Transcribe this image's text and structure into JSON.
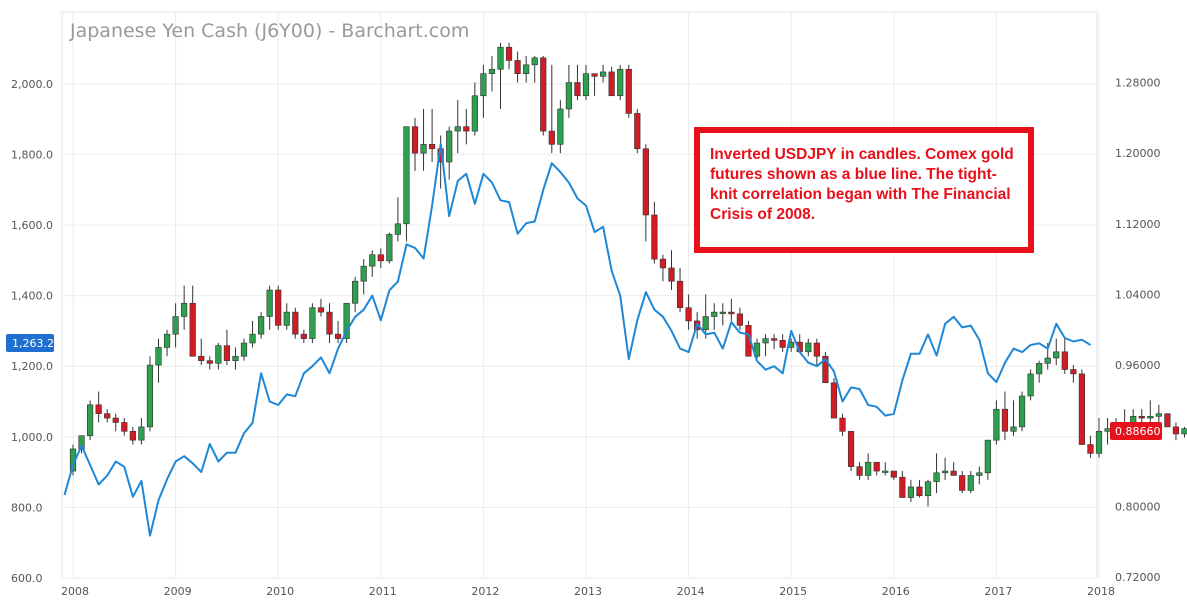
{
  "title": "Japanese Yen Cash (J6Y00) - Barchart.com",
  "annotation": "Inverted USDJPY in candles. Comex gold futures shown as a blue line. The tight-knit correlation began with The Financial Crisis of 2008.",
  "left_badge": "1,263.2",
  "right_badge": "0.88660",
  "colors": {
    "up": "#2e9e4f",
    "down": "#d01c24",
    "gold_line": "#1e88d6",
    "badge_left": "#1e6fd0",
    "badge_right": "#e8101a",
    "note_border": "#e8101a"
  },
  "chart_data": {
    "type": "line",
    "x_ticks": [
      "2008",
      "2009",
      "2010",
      "2011",
      "2012",
      "2013",
      "2014",
      "2015",
      "2016",
      "2017",
      "2018"
    ],
    "left_axis": {
      "ticks": [
        "600.0",
        "800.0",
        "1,000.0",
        "1,200.0",
        "1,400.0",
        "1,600.0",
        "1,800.0",
        "2,000.0"
      ],
      "ylim": [
        600,
        2200
      ]
    },
    "right_axis": {
      "ticks": [
        "0.72000",
        "0.80000",
        "0.88000",
        "0.96000",
        "1.04000",
        "1.12000",
        "1.20000",
        "1.28000"
      ],
      "ylim": [
        0.72,
        1.28
      ]
    },
    "grid": true,
    "series": [
      {
        "type": "line",
        "axis": "left",
        "start": "2007-12",
        "values": [
          835,
          920,
          975,
          920,
          865,
          890,
          930,
          915,
          830,
          875,
          720,
          820,
          880,
          930,
          945,
          925,
          900,
          980,
          930,
          955,
          955,
          1010,
          1040,
          1180,
          1100,
          1090,
          1120,
          1115,
          1180,
          1200,
          1225,
          1180,
          1250,
          1300,
          1340,
          1360,
          1400,
          1330,
          1415,
          1440,
          1545,
          1535,
          1505,
          1655,
          1830,
          1625,
          1725,
          1745,
          1660,
          1745,
          1720,
          1670,
          1665,
          1575,
          1605,
          1610,
          1700,
          1775,
          1750,
          1720,
          1675,
          1655,
          1580,
          1595,
          1470,
          1400,
          1220,
          1330,
          1410,
          1360,
          1340,
          1300,
          1250,
          1240,
          1320,
          1290,
          1295,
          1250,
          1325,
          1295,
          1290,
          1215,
          1190,
          1200,
          1180,
          1300,
          1240,
          1210,
          1200,
          1220,
          1185,
          1100,
          1140,
          1135,
          1090,
          1085,
          1060,
          1065,
          1160,
          1235,
          1235,
          1290,
          1230,
          1320,
          1340,
          1310,
          1315,
          1275,
          1180,
          1155,
          1210,
          1250,
          1240,
          1260,
          1265,
          1250,
          1320,
          1280,
          1270,
          1275,
          1260
        ]
      },
      {
        "type": "candlestick",
        "axis": "right",
        "start": "2008-01",
        "ohlc": [
          [
            0.84,
            0.87,
            0.835,
            0.865
          ],
          [
            0.865,
            0.875,
            0.86,
            0.88
          ],
          [
            0.88,
            0.92,
            0.875,
            0.915
          ],
          [
            0.915,
            0.93,
            0.895,
            0.905
          ],
          [
            0.905,
            0.91,
            0.895,
            0.9
          ],
          [
            0.9,
            0.905,
            0.885,
            0.895
          ],
          [
            0.895,
            0.9,
            0.88,
            0.885
          ],
          [
            0.885,
            0.89,
            0.87,
            0.875
          ],
          [
            0.875,
            0.9,
            0.87,
            0.89
          ],
          [
            0.89,
            0.97,
            0.885,
            0.96
          ],
          [
            0.96,
            0.99,
            0.94,
            0.98
          ],
          [
            0.98,
            1.0,
            0.97,
            0.995
          ],
          [
            0.995,
            1.03,
            0.98,
            1.015
          ],
          [
            1.015,
            1.05,
            1.0,
            1.03
          ],
          [
            1.03,
            1.05,
            0.97,
            0.97
          ],
          [
            0.97,
            0.99,
            0.96,
            0.965
          ],
          [
            0.965,
            0.97,
            0.955,
            0.962
          ],
          [
            0.962,
            0.985,
            0.955,
            0.982
          ],
          [
            0.982,
            1.0,
            0.96,
            0.965
          ],
          [
            0.965,
            0.98,
            0.955,
            0.97
          ],
          [
            0.97,
            0.99,
            0.965,
            0.985
          ],
          [
            0.985,
            1.01,
            0.98,
            0.995
          ],
          [
            0.995,
            1.02,
            0.99,
            1.015
          ],
          [
            1.015,
            1.05,
            1.0,
            1.045
          ],
          [
            1.045,
            1.05,
            1.0,
            1.005
          ],
          [
            1.005,
            1.03,
            1.0,
            1.02
          ],
          [
            1.02,
            1.025,
            0.99,
            0.995
          ],
          [
            0.995,
            1.0,
            0.985,
            0.99
          ],
          [
            0.99,
            1.03,
            0.985,
            1.025
          ],
          [
            1.025,
            1.035,
            1.015,
            1.02
          ],
          [
            1.02,
            1.03,
            0.985,
            0.995
          ],
          [
            0.995,
            1.01,
            0.985,
            0.99
          ],
          [
            0.99,
            1.03,
            0.985,
            1.03
          ],
          [
            1.03,
            1.06,
            1.02,
            1.055
          ],
          [
            1.055,
            1.08,
            1.04,
            1.072
          ],
          [
            1.072,
            1.09,
            1.06,
            1.085
          ],
          [
            1.085,
            1.092,
            1.07,
            1.078
          ],
          [
            1.078,
            1.11,
            1.075,
            1.108
          ],
          [
            1.108,
            1.15,
            1.1,
            1.12
          ],
          [
            1.12,
            1.23,
            1.1,
            1.23
          ],
          [
            1.23,
            1.24,
            1.18,
            1.2
          ],
          [
            1.2,
            1.25,
            1.18,
            1.21
          ],
          [
            1.21,
            1.25,
            1.19,
            1.205
          ],
          [
            1.205,
            1.22,
            1.16,
            1.19
          ],
          [
            1.19,
            1.23,
            1.17,
            1.225
          ],
          [
            1.225,
            1.26,
            1.2,
            1.23
          ],
          [
            1.23,
            1.25,
            1.21,
            1.225
          ],
          [
            1.225,
            1.28,
            1.22,
            1.265
          ],
          [
            1.265,
            1.3,
            1.24,
            1.29
          ],
          [
            1.29,
            1.31,
            1.27,
            1.295
          ],
          [
            1.295,
            1.325,
            1.25,
            1.32
          ],
          [
            1.32,
            1.325,
            1.295,
            1.305
          ],
          [
            1.305,
            1.315,
            1.28,
            1.29
          ],
          [
            1.29,
            1.31,
            1.28,
            1.3
          ],
          [
            1.3,
            1.31,
            1.28,
            1.308
          ],
          [
            1.308,
            1.31,
            1.22,
            1.225
          ],
          [
            1.225,
            1.3,
            1.2,
            1.21
          ],
          [
            1.21,
            1.26,
            1.2,
            1.25
          ],
          [
            1.25,
            1.3,
            1.24,
            1.28
          ],
          [
            1.28,
            1.3,
            1.26,
            1.265
          ],
          [
            1.265,
            1.3,
            1.26,
            1.29
          ],
          [
            1.29,
            1.29,
            1.265,
            1.287
          ],
          [
            1.287,
            1.3,
            1.28,
            1.292
          ],
          [
            1.292,
            1.298,
            1.265,
            1.265
          ],
          [
            1.265,
            1.3,
            1.26,
            1.295
          ],
          [
            1.295,
            1.3,
            1.24,
            1.245
          ],
          [
            1.245,
            1.25,
            1.2,
            1.205
          ],
          [
            1.205,
            1.21,
            1.1,
            1.13
          ],
          [
            1.13,
            1.145,
            1.075,
            1.08
          ],
          [
            1.08,
            1.085,
            1.055,
            1.07
          ],
          [
            1.07,
            1.09,
            1.045,
            1.055
          ],
          [
            1.055,
            1.07,
            1.02,
            1.025
          ],
          [
            1.025,
            1.04,
            1.0,
            1.01
          ],
          [
            1.01,
            1.02,
            0.99,
            1.0
          ],
          [
            1.0,
            1.04,
            0.99,
            1.015
          ],
          [
            1.015,
            1.03,
            1.0,
            1.02
          ],
          [
            1.02,
            1.03,
            1.005,
            1.02
          ],
          [
            1.02,
            1.035,
            1.01,
            1.018
          ],
          [
            1.018,
            1.025,
            1.0,
            1.005
          ],
          [
            1.005,
            1.01,
            0.97,
            0.97
          ],
          [
            0.97,
            0.99,
            0.965,
            0.985
          ],
          [
            0.985,
            0.995,
            0.97,
            0.99
          ],
          [
            0.99,
            0.995,
            0.978,
            0.988
          ],
          [
            0.988,
            0.995,
            0.975,
            0.98
          ],
          [
            0.98,
            0.99,
            0.975,
            0.986
          ],
          [
            0.986,
            0.995,
            0.978,
            0.975
          ],
          [
            0.975,
            0.99,
            0.97,
            0.985
          ],
          [
            0.985,
            0.99,
            0.96,
            0.97
          ],
          [
            0.97,
            0.975,
            0.94,
            0.94
          ],
          [
            0.94,
            0.945,
            0.9,
            0.9
          ],
          [
            0.9,
            0.905,
            0.88,
            0.885
          ],
          [
            0.885,
            0.87,
            0.84,
            0.845
          ],
          [
            0.845,
            0.85,
            0.83,
            0.835
          ],
          [
            0.835,
            0.86,
            0.83,
            0.85
          ],
          [
            0.85,
            0.85,
            0.835,
            0.84
          ],
          [
            0.84,
            0.85,
            0.835,
            0.84
          ],
          [
            0.84,
            0.84,
            0.83,
            0.833
          ],
          [
            0.833,
            0.84,
            0.82,
            0.81
          ],
          [
            0.81,
            0.83,
            0.805,
            0.822
          ],
          [
            0.822,
            0.83,
            0.81,
            0.812
          ],
          [
            0.812,
            0.83,
            0.8,
            0.828
          ],
          [
            0.828,
            0.86,
            0.815,
            0.838
          ],
          [
            0.838,
            0.855,
            0.83,
            0.84
          ],
          [
            0.84,
            0.85,
            0.835,
            0.835
          ],
          [
            0.835,
            0.84,
            0.815,
            0.818
          ],
          [
            0.818,
            0.84,
            0.815,
            0.835
          ],
          [
            0.835,
            0.845,
            0.825,
            0.838
          ],
          [
            0.838,
            0.86,
            0.83,
            0.875
          ],
          [
            0.875,
            0.92,
            0.87,
            0.91
          ],
          [
            0.91,
            0.93,
            0.875,
            0.885
          ],
          [
            0.885,
            0.92,
            0.88,
            0.89
          ],
          [
            0.89,
            0.93,
            0.885,
            0.925
          ],
          [
            0.925,
            0.955,
            0.92,
            0.95
          ],
          [
            0.95,
            0.965,
            0.94,
            0.962
          ],
          [
            0.962,
            0.985,
            0.955,
            0.968
          ],
          [
            0.968,
            0.99,
            0.96,
            0.975
          ],
          [
            0.975,
            0.99,
            0.95,
            0.955
          ],
          [
            0.955,
            0.96,
            0.94,
            0.95
          ],
          [
            0.95,
            0.955,
            0.87,
            0.87
          ],
          [
            0.87,
            0.88,
            0.855,
            0.86
          ],
          [
            0.86,
            0.9,
            0.855,
            0.885
          ],
          [
            0.885,
            0.9,
            0.87,
            0.888
          ],
          [
            0.888,
            0.9,
            0.875,
            0.89
          ],
          [
            0.89,
            0.91,
            0.88,
            0.895
          ],
          [
            0.895,
            0.91,
            0.885,
            0.902
          ],
          [
            0.902,
            0.91,
            0.89,
            0.9
          ],
          [
            0.9,
            0.92,
            0.89,
            0.902
          ],
          [
            0.902,
            0.915,
            0.89,
            0.905
          ],
          [
            0.905,
            0.905,
            0.892,
            0.89
          ],
          [
            0.89,
            0.895,
            0.875,
            0.882
          ],
          [
            0.882,
            0.89,
            0.878,
            0.888
          ],
          [
            0.888,
            0.895,
            0.88,
            0.886
          ]
        ]
      }
    ]
  }
}
